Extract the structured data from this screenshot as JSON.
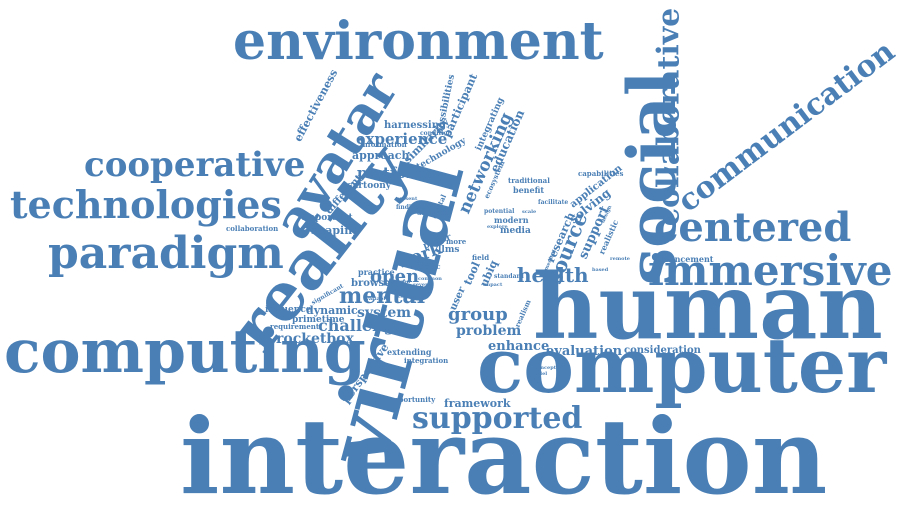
{
  "word_color": "#4a7fb5",
  "background_color": "#ffffff",
  "words": {
    "interaction": "interaction",
    "human": "human",
    "computer": "computer",
    "virtual": "virtual",
    "reality": "reality",
    "computing": "computing",
    "environment": "environment",
    "social": "social",
    "immersive": "immersive",
    "technologies": "technologies",
    "paradigm": "paradigm",
    "cooperative": "cooperative",
    "avatar": "avatar",
    "centered": "centered",
    "communication": "communication",
    "collaborative": "collaborative",
    "supported": "supported",
    "mental": "mental",
    "health": "health",
    "networking": "networking",
    "experience": "experience",
    "platform": "platform",
    "source": "source",
    "challenge": "challenge",
    "group": "group",
    "problem": "problem",
    "work": "work",
    "open": "open",
    "system": "system",
    "rocketbox": "rocketbox",
    "enhance": "enhance",
    "evaluation": "evaluation",
    "framework": "framework",
    "perspective": "perspective",
    "approach": "approach",
    "harnessing": "harnessing",
    "effectiveness": "effectiveness",
    "similarity": "similarity",
    "education": "education",
    "participant": "participant",
    "possibilities": "possibilities",
    "technology": "technology",
    "information": "information",
    "integrating": "integrating",
    "shaping": "shaping",
    "important": "important",
    "different": "different",
    "cartoony": "cartoony",
    "dynamic": "dynamic",
    "primetime": "primetime",
    "influence": "influence",
    "requirement": "requirement",
    "browser": "browser",
    "practice": "practice",
    "paper": "paper",
    "llms": "llms",
    "tool": "tool",
    "user": "user",
    "media": "media",
    "modern": "modern",
    "research": "research",
    "support": "support",
    "solving": "solving",
    "application": "application",
    "capabilities": "capabilities",
    "benefit": "benefit",
    "traditional": "traditional",
    "advancement": "advancement",
    "consideration": "consideration",
    "extending": "extending",
    "integration": "integration",
    "opportunity": "opportunity",
    "collaboration": "collaboration",
    "significant": "significant",
    "specific": "specific",
    "realistic": "realistic",
    "realism": "realism",
    "ecosystem": "ecosystem",
    "digital": "digital",
    "designed": "designed",
    "finding": "finding",
    "potential": "potential",
    "facilitate": "facilitate",
    "field": "field",
    "ubiq": "ubiq",
    "more": "more",
    "standard": "standard",
    "condition": "condition",
    "present": "present",
    "variable": "variable",
    "scale": "scale",
    "design": "design",
    "several": "several",
    "medical": "medical",
    "concept": "concept",
    "explore": "explore",
    "context": "context",
    "common": "common",
    "based": "based",
    "mental_model": "model",
    "person": "person",
    "impact": "impact",
    "remote": "remote",
    "new": "new"
  }
}
